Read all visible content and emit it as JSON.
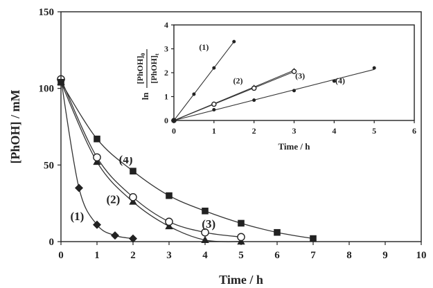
{
  "chart_data": [
    {
      "type": "scatter",
      "xlabel": "Time / h",
      "ylabel": "[PhOH] / mM",
      "xlim": [
        0,
        10
      ],
      "ylim": [
        0,
        150
      ],
      "xticks": [
        "0",
        "1",
        "2",
        "3",
        "4",
        "5",
        "6",
        "7",
        "8",
        "9",
        "10"
      ],
      "yticks": [
        "0",
        "50",
        "100",
        "150"
      ],
      "series": [
        {
          "name": "(1)",
          "marker": "diamond",
          "x": [
            0,
            0.5,
            1,
            1.5,
            2
          ],
          "y": [
            106,
            35,
            11,
            4,
            2
          ]
        },
        {
          "name": "(2)",
          "marker": "triangle",
          "x": [
            0,
            1,
            2,
            3,
            4,
            5
          ],
          "y": [
            104,
            52,
            26,
            10,
            1,
            0
          ]
        },
        {
          "name": "(3)",
          "marker": "circle-open",
          "x": [
            0,
            1,
            2,
            3,
            4,
            5
          ],
          "y": [
            106,
            55,
            29,
            13,
            6,
            3
          ]
        },
        {
          "name": "(4)",
          "marker": "square",
          "x": [
            0,
            1,
            2,
            3,
            4,
            5,
            6,
            7
          ],
          "y": [
            104,
            67,
            46,
            30,
            20,
            12,
            6,
            2
          ]
        }
      ],
      "annotations": [
        {
          "text": "(1)",
          "x": 0.45,
          "y": 14
        },
        {
          "text": "(2)",
          "x": 1.45,
          "y": 25
        },
        {
          "text": "(3)",
          "x": 4.1,
          "y": 9
        },
        {
          "text": "(4)",
          "x": 1.8,
          "y": 51
        }
      ]
    },
    {
      "type": "scatter",
      "xlabel": "Time / h",
      "ylabel_prefix": "ln",
      "ylabel_numerator": "[PhOH]",
      "ylabel_numerator_sub": "0",
      "ylabel_denominator": "[PhOH]",
      "ylabel_denominator_sub": "t",
      "xlim": [
        0,
        6
      ],
      "ylim": [
        0,
        4
      ],
      "xticks": [
        "0",
        "1",
        "2",
        "3",
        "4",
        "5",
        "6"
      ],
      "yticks": [
        "0",
        "1",
        "2",
        "3",
        "4"
      ],
      "series": [
        {
          "name": "(1)",
          "marker": "dot",
          "x": [
            0,
            0.5,
            1,
            1.5
          ],
          "y": [
            0,
            1.1,
            2.2,
            3.3
          ]
        },
        {
          "name": "(2)",
          "marker": "triangle",
          "x": [
            0,
            1,
            2,
            3
          ],
          "y": [
            0,
            0.7,
            1.4,
            2.1
          ]
        },
        {
          "name": "(3)",
          "marker": "circle-open",
          "x": [
            0,
            1,
            2,
            3
          ],
          "y": [
            0,
            0.68,
            1.35,
            2.05
          ]
        },
        {
          "name": "(4)",
          "marker": "dot",
          "x": [
            0,
            1,
            2,
            3,
            4,
            5
          ],
          "y": [
            0,
            0.45,
            0.85,
            1.25,
            1.65,
            2.2
          ]
        }
      ],
      "annotations": [
        {
          "text": "(1)",
          "x": 0.75,
          "y": 2.95
        },
        {
          "text": "(2)",
          "x": 1.6,
          "y": 1.55
        },
        {
          "text": "(3)",
          "x": 3.15,
          "y": 1.75
        },
        {
          "text": "(4)",
          "x": 4.15,
          "y": 1.55
        }
      ]
    }
  ]
}
